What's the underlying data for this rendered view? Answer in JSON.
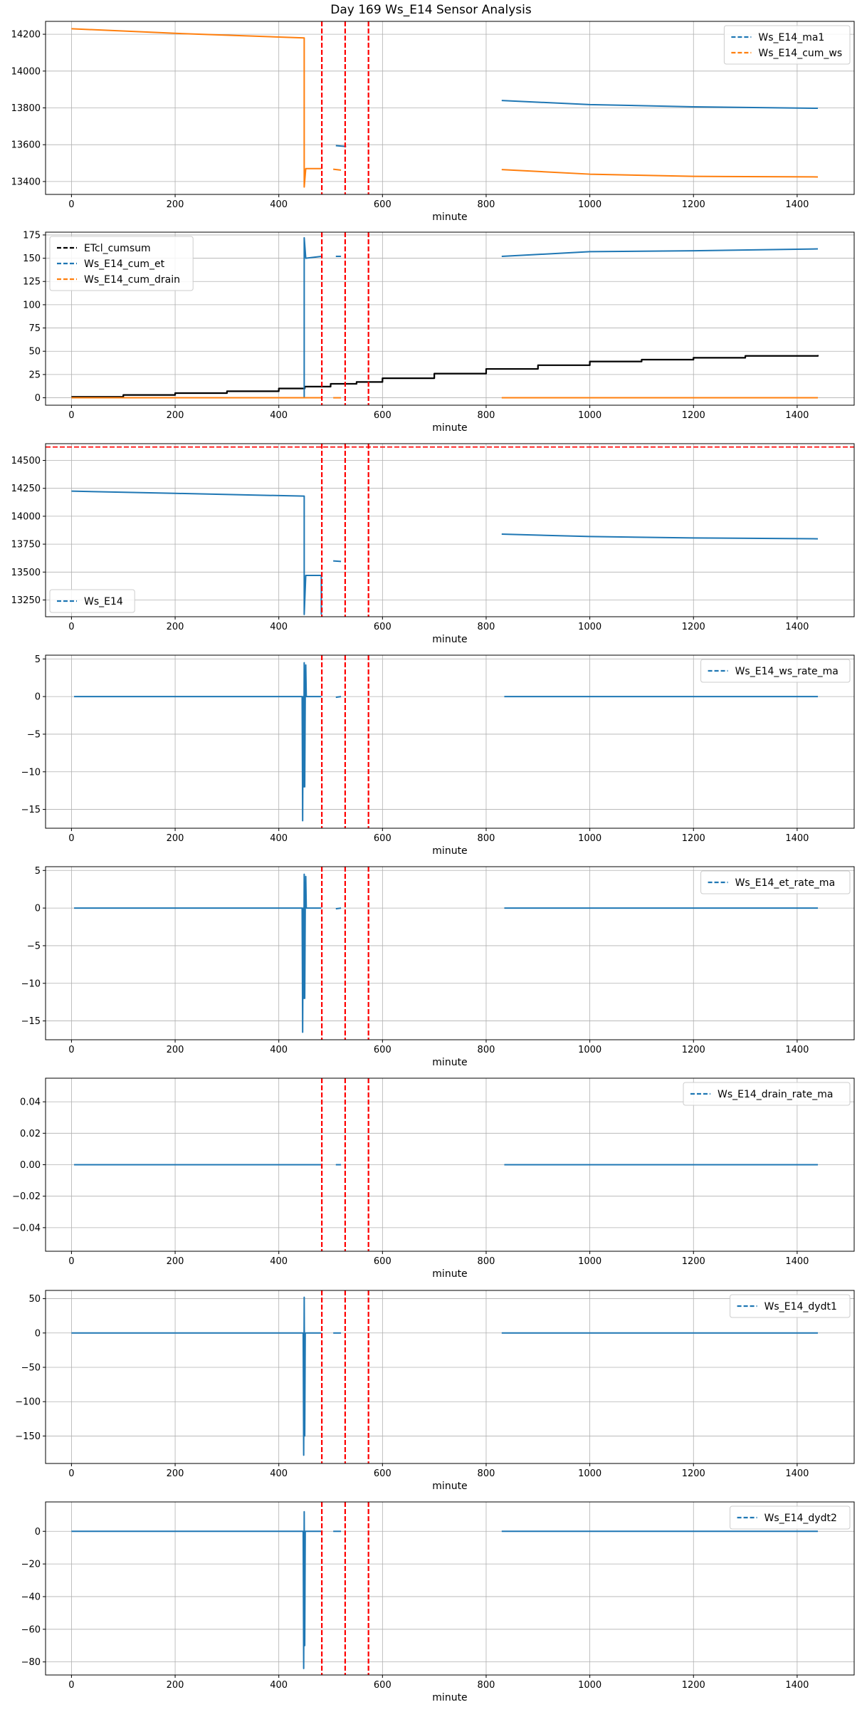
{
  "figure": {
    "title": "Day 169 Ws_E14 Sensor Analysis"
  },
  "chart_data": [
    {
      "type": "line",
      "xlabel": "minute",
      "xlim": [
        -50,
        1510
      ],
      "ylim": [
        13330,
        14270
      ],
      "xticks": [
        0,
        200,
        400,
        600,
        800,
        1000,
        1200,
        1400
      ],
      "yticks": [
        13400,
        13600,
        13800,
        14000,
        14200
      ],
      "legend": "top-right",
      "grid": true,
      "vlines": [
        483,
        528,
        573
      ],
      "series": [
        {
          "name": "Ws_E14_ma1",
          "color": "#1f77b4",
          "segments": [
            [
              [
                510,
                13595
              ],
              [
                530,
                13590
              ]
            ],
            [
              [
                830,
                13840
              ],
              [
                1000,
                13818
              ],
              [
                1200,
                13806
              ],
              [
                1440,
                13798
              ]
            ]
          ]
        },
        {
          "name": "Ws_E14_cum_ws",
          "color": "#ff7f0e",
          "segments": [
            [
              [
                0,
                14230
              ],
              [
                200,
                14205
              ],
              [
                449,
                14180
              ],
              [
                449,
                13370
              ],
              [
                452,
                13470
              ],
              [
                482,
                13470
              ]
            ],
            [
              [
                505,
                13467
              ],
              [
                520,
                13462
              ]
            ],
            [
              [
                830,
                13465
              ],
              [
                1000,
                13440
              ],
              [
                1200,
                13428
              ],
              [
                1440,
                13425
              ]
            ]
          ]
        }
      ]
    },
    {
      "type": "line",
      "xlabel": "minute",
      "xlim": [
        -50,
        1510
      ],
      "ylim": [
        -8,
        178
      ],
      "xticks": [
        0,
        200,
        400,
        600,
        800,
        1000,
        1200,
        1400
      ],
      "yticks": [
        0,
        25,
        50,
        75,
        100,
        125,
        150,
        175
      ],
      "legend": "top-left",
      "grid": true,
      "vlines": [
        483,
        528,
        573
      ],
      "series": [
        {
          "name": "ETcl_cumsum",
          "color": "#000000",
          "style": "step",
          "segments": [
            [
              [
                0,
                1
              ],
              [
                100,
                3
              ],
              [
                200,
                5
              ],
              [
                300,
                7
              ],
              [
                400,
                10
              ],
              [
                450,
                12
              ],
              [
                500,
                15
              ],
              [
                550,
                17
              ],
              [
                600,
                21
              ],
              [
                700,
                26
              ],
              [
                800,
                31
              ],
              [
                900,
                35
              ],
              [
                1000,
                39
              ],
              [
                1100,
                41
              ],
              [
                1200,
                43
              ],
              [
                1300,
                45
              ],
              [
                1440,
                46
              ]
            ]
          ]
        },
        {
          "name": "Ws_E14_cum_et",
          "color": "#1f77b4",
          "segments": [
            [
              [
                0,
                0
              ],
              [
                449,
                0
              ],
              [
                449,
                172
              ],
              [
                452,
                150
              ],
              [
                482,
                152
              ]
            ],
            [
              [
                510,
                152
              ],
              [
                520,
                152
              ]
            ],
            [
              [
                830,
                152
              ],
              [
                1000,
                157
              ],
              [
                1200,
                158
              ],
              [
                1440,
                160
              ]
            ]
          ]
        },
        {
          "name": "Ws_E14_cum_drain",
          "color": "#ff7f0e",
          "segments": [
            [
              [
                0,
                0
              ],
              [
                482,
                0
              ]
            ],
            [
              [
                505,
                0
              ],
              [
                520,
                0
              ]
            ],
            [
              [
                830,
                0
              ],
              [
                1440,
                0
              ]
            ]
          ]
        }
      ]
    },
    {
      "type": "line",
      "xlabel": "minute",
      "xlim": [
        -50,
        1510
      ],
      "ylim": [
        13100,
        14650
      ],
      "xticks": [
        0,
        200,
        400,
        600,
        800,
        1000,
        1200,
        1400
      ],
      "yticks": [
        13250,
        13500,
        13750,
        14000,
        14250,
        14500
      ],
      "legend": "bottom-left",
      "grid": true,
      "vlines": [
        483,
        528,
        573
      ],
      "hlines": [
        14620
      ],
      "series": [
        {
          "name": "Ws_E14",
          "color": "#1f77b4",
          "segments": [
            [
              [
                0,
                14225
              ],
              [
                200,
                14205
              ],
              [
                449,
                14180
              ],
              [
                449,
                13120
              ],
              [
                452,
                13470
              ],
              [
                482,
                13470
              ],
              [
                482,
                13120
              ]
            ],
            [
              [
                505,
                13600
              ],
              [
                520,
                13595
              ]
            ],
            [
              [
                830,
                13840
              ],
              [
                1000,
                13818
              ],
              [
                1200,
                13806
              ],
              [
                1440,
                13798
              ]
            ]
          ]
        }
      ]
    },
    {
      "type": "line",
      "xlabel": "minute",
      "xlim": [
        -50,
        1510
      ],
      "ylim": [
        -17.5,
        5.5
      ],
      "xticks": [
        0,
        200,
        400,
        600,
        800,
        1000,
        1200,
        1400
      ],
      "yticks": [
        5,
        0,
        -5,
        -10,
        -15
      ],
      "legend": "top-right",
      "grid": true,
      "vlines": [
        483,
        528,
        573
      ],
      "series": [
        {
          "name": "Ws_E14_ws_rate_ma",
          "color": "#1f77b4",
          "segments": [
            [
              [
                5,
                0
              ],
              [
                445,
                0
              ],
              [
                446,
                -16.5
              ],
              [
                447,
                0
              ],
              [
                448,
                -12
              ],
              [
                449,
                4.5
              ],
              [
                450,
                -12
              ],
              [
                451,
                0
              ],
              [
                452,
                4.2
              ],
              [
                453,
                0
              ],
              [
                482,
                0
              ]
            ],
            [
              [
                510,
                -0.1
              ],
              [
                520,
                0
              ]
            ],
            [
              [
                835,
                0
              ],
              [
                1440,
                0
              ]
            ]
          ]
        }
      ]
    },
    {
      "type": "line",
      "xlabel": "minute",
      "xlim": [
        -50,
        1510
      ],
      "ylim": [
        -17.5,
        5.5
      ],
      "xticks": [
        0,
        200,
        400,
        600,
        800,
        1000,
        1200,
        1400
      ],
      "yticks": [
        5,
        0,
        -5,
        -10,
        -15
      ],
      "legend": "top-right",
      "grid": true,
      "vlines": [
        483,
        528,
        573
      ],
      "series": [
        {
          "name": "Ws_E14_et_rate_ma",
          "color": "#1f77b4",
          "segments": [
            [
              [
                5,
                0
              ],
              [
                445,
                0
              ],
              [
                446,
                -16.5
              ],
              [
                447,
                0
              ],
              [
                448,
                -12
              ],
              [
                449,
                4.5
              ],
              [
                450,
                -12
              ],
              [
                451,
                0
              ],
              [
                452,
                4.2
              ],
              [
                453,
                0
              ],
              [
                482,
                0
              ]
            ],
            [
              [
                510,
                -0.1
              ],
              [
                520,
                0
              ]
            ],
            [
              [
                835,
                0
              ],
              [
                1440,
                0
              ]
            ]
          ]
        }
      ]
    },
    {
      "type": "line",
      "xlabel": "minute",
      "xlim": [
        -50,
        1510
      ],
      "ylim": [
        -0.055,
        0.055
      ],
      "xticks": [
        0,
        200,
        400,
        600,
        800,
        1000,
        1200,
        1400
      ],
      "yticks": [
        0.04,
        0.02,
        0.0,
        -0.02,
        -0.04
      ],
      "ytick_labels": [
        "0.04",
        "0.02",
        "0.00",
        "-0.02",
        "-0.04"
      ],
      "legend": "top-right",
      "grid": true,
      "vlines": [
        483,
        528,
        573
      ],
      "series": [
        {
          "name": "Ws_E14_drain_rate_ma",
          "color": "#1f77b4",
          "segments": [
            [
              [
                5,
                0
              ],
              [
                482,
                0
              ]
            ],
            [
              [
                510,
                0
              ],
              [
                520,
                0
              ]
            ],
            [
              [
                835,
                0
              ],
              [
                1440,
                0
              ]
            ]
          ]
        }
      ]
    },
    {
      "type": "line",
      "xlabel": "minute",
      "xlim": [
        -50,
        1510
      ],
      "ylim": [
        -190,
        62
      ],
      "xticks": [
        0,
        200,
        400,
        600,
        800,
        1000,
        1200,
        1400
      ],
      "yticks": [
        50,
        0,
        -50,
        -100,
        -150
      ],
      "legend": "top-right",
      "grid": true,
      "vlines": [
        483,
        528,
        573
      ],
      "series": [
        {
          "name": "Ws_E14_dydt1",
          "color": "#1f77b4",
          "segments": [
            [
              [
                0,
                0
              ],
              [
                447,
                0
              ],
              [
                448,
                -178
              ],
              [
                449,
                52
              ],
              [
                450,
                -150
              ],
              [
                451,
                0
              ],
              [
                482,
                0
              ]
            ],
            [
              [
                505,
                0
              ],
              [
                520,
                0
              ]
            ],
            [
              [
                830,
                0
              ],
              [
                1440,
                0
              ]
            ]
          ]
        }
      ]
    },
    {
      "type": "line",
      "xlabel": "minute",
      "xlim": [
        -50,
        1510
      ],
      "ylim": [
        -88,
        18
      ],
      "xticks": [
        0,
        200,
        400,
        600,
        800,
        1000,
        1200,
        1400
      ],
      "yticks": [
        0,
        -20,
        -40,
        -60,
        -80
      ],
      "legend": "top-right",
      "grid": true,
      "vlines": [
        483,
        528,
        573
      ],
      "series": [
        {
          "name": "Ws_E14_dydt2",
          "color": "#1f77b4",
          "segments": [
            [
              [
                0,
                0
              ],
              [
                447,
                0
              ],
              [
                448,
                -84
              ],
              [
                449,
                12
              ],
              [
                450,
                -70
              ],
              [
                451,
                0
              ],
              [
                482,
                0
              ]
            ],
            [
              [
                505,
                0
              ],
              [
                520,
                0
              ]
            ],
            [
              [
                830,
                0
              ],
              [
                1440,
                0
              ]
            ]
          ]
        }
      ]
    }
  ]
}
